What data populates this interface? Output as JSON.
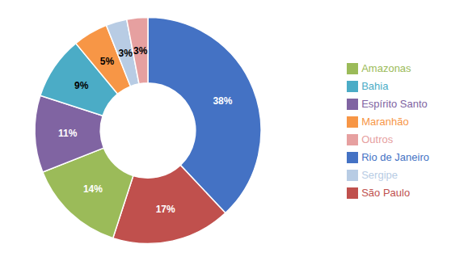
{
  "chart_data": {
    "type": "pie",
    "categories": [
      "Rio de Janeiro",
      "São Paulo",
      "Amazonas",
      "Espírito Santo",
      "Bahia",
      "Maranhão",
      "Sergipe",
      "Outros"
    ],
    "values": [
      38,
      17,
      14,
      11,
      9,
      5,
      3,
      3
    ],
    "value_labels": [
      "38%",
      "17%",
      "14%",
      "11%",
      "9%",
      "5%",
      "3%",
      "3%"
    ],
    "colors": [
      "#4472C4",
      "#C0504D",
      "#9BBB59",
      "#8064A2",
      "#4BACC6",
      "#F79646",
      "#B8CCE4",
      "#E6A0A0"
    ],
    "data_labels": true,
    "legend": "right"
  }
}
